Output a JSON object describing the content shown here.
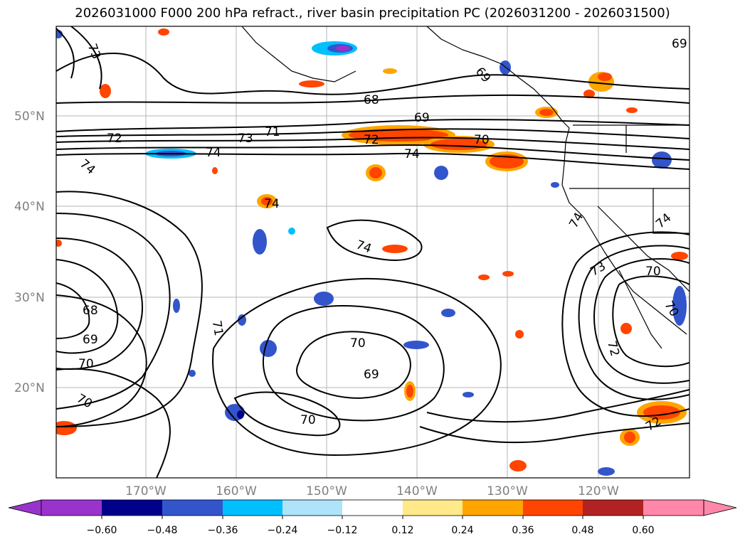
{
  "title": "2026031000 F000 200 hPa refract., river basin precipitation PC (2026031200 - 2026031500)",
  "map": {
    "lat_labels": [
      "50°N",
      "40°N",
      "30°N",
      "20°N"
    ],
    "lon_labels": [
      "170°W",
      "160°W",
      "150°W",
      "140°W",
      "130°W",
      "120°W"
    ],
    "contour_labels": [
      "73",
      "69",
      "68",
      "69",
      "71",
      "73",
      "72",
      "70",
      "74",
      "72",
      "74",
      "74",
      "74",
      "74",
      "74",
      "74",
      "73",
      "70",
      "68",
      "69",
      "70",
      "70",
      "71",
      "70",
      "69",
      "70",
      "72",
      "70",
      "72",
      "69"
    ]
  },
  "colorbar": {
    "ticks": [
      "−0.60",
      "−0.48",
      "−0.36",
      "−0.24",
      "−0.12",
      "0.12",
      "0.24",
      "0.36",
      "0.48",
      "0.60"
    ],
    "colors": [
      "#9933cc",
      "#00008b",
      "#3355cc",
      "#00bfff",
      "#aee3fa",
      "#ffffff",
      "#ffe98a",
      "#ffa500",
      "#ff4500",
      "#b22222",
      "#ff88aa"
    ]
  }
}
